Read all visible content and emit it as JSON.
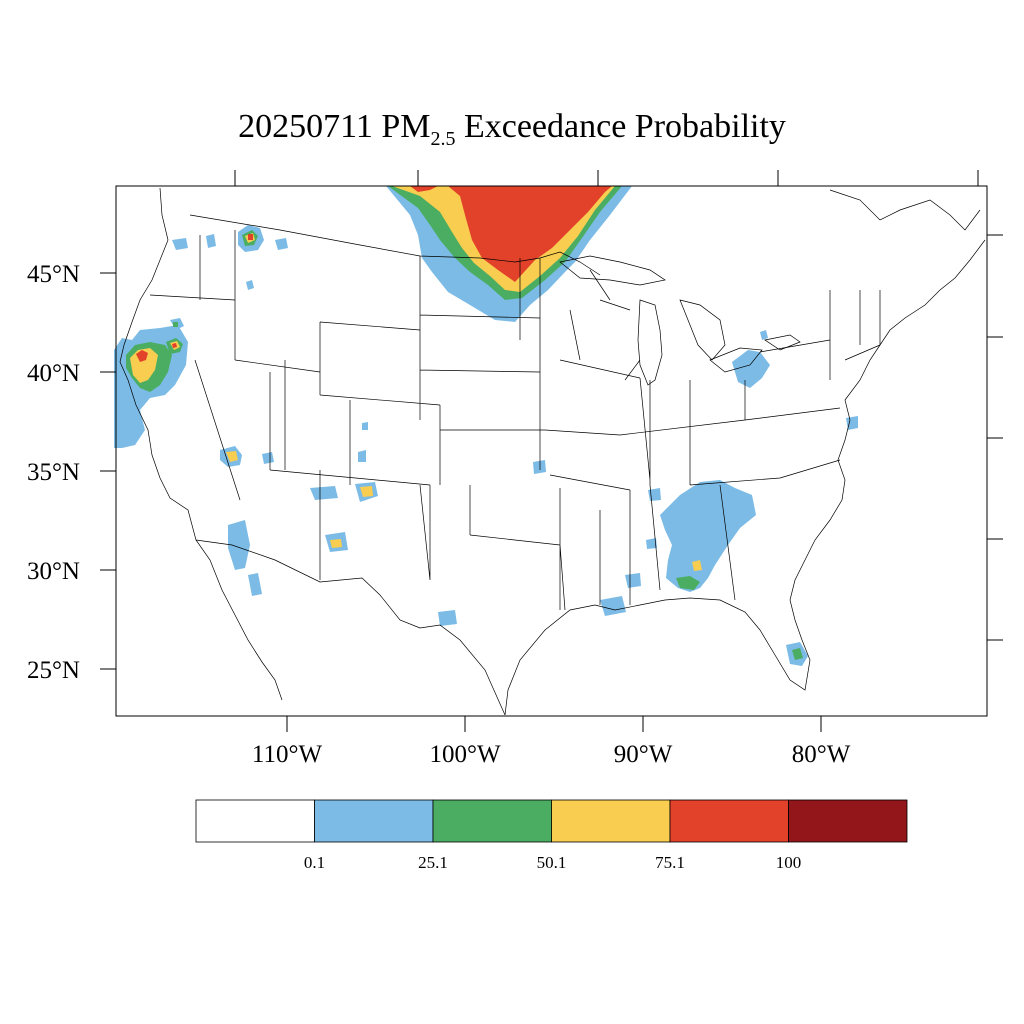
{
  "title": {
    "date": "20250711",
    "prefix": "PM",
    "subscript": "2.5",
    "suffix": "Exceedance Probability"
  },
  "lat_labels": [
    "45°N",
    "40°N",
    "35°N",
    "30°N",
    "25°N"
  ],
  "lon_labels": [
    "110°W",
    "100°W",
    "90°W",
    "80°W"
  ],
  "colorbar": {
    "bins": [
      {
        "color": "#ffffff"
      },
      {
        "color": "#7bbbe6"
      },
      {
        "color": "#4aad62"
      },
      {
        "color": "#f8cd50"
      },
      {
        "color": "#e2412a"
      },
      {
        "color": "#93161b"
      }
    ],
    "labels": [
      "0.1",
      "25.1",
      "50.1",
      "75.1",
      "100"
    ]
  }
}
